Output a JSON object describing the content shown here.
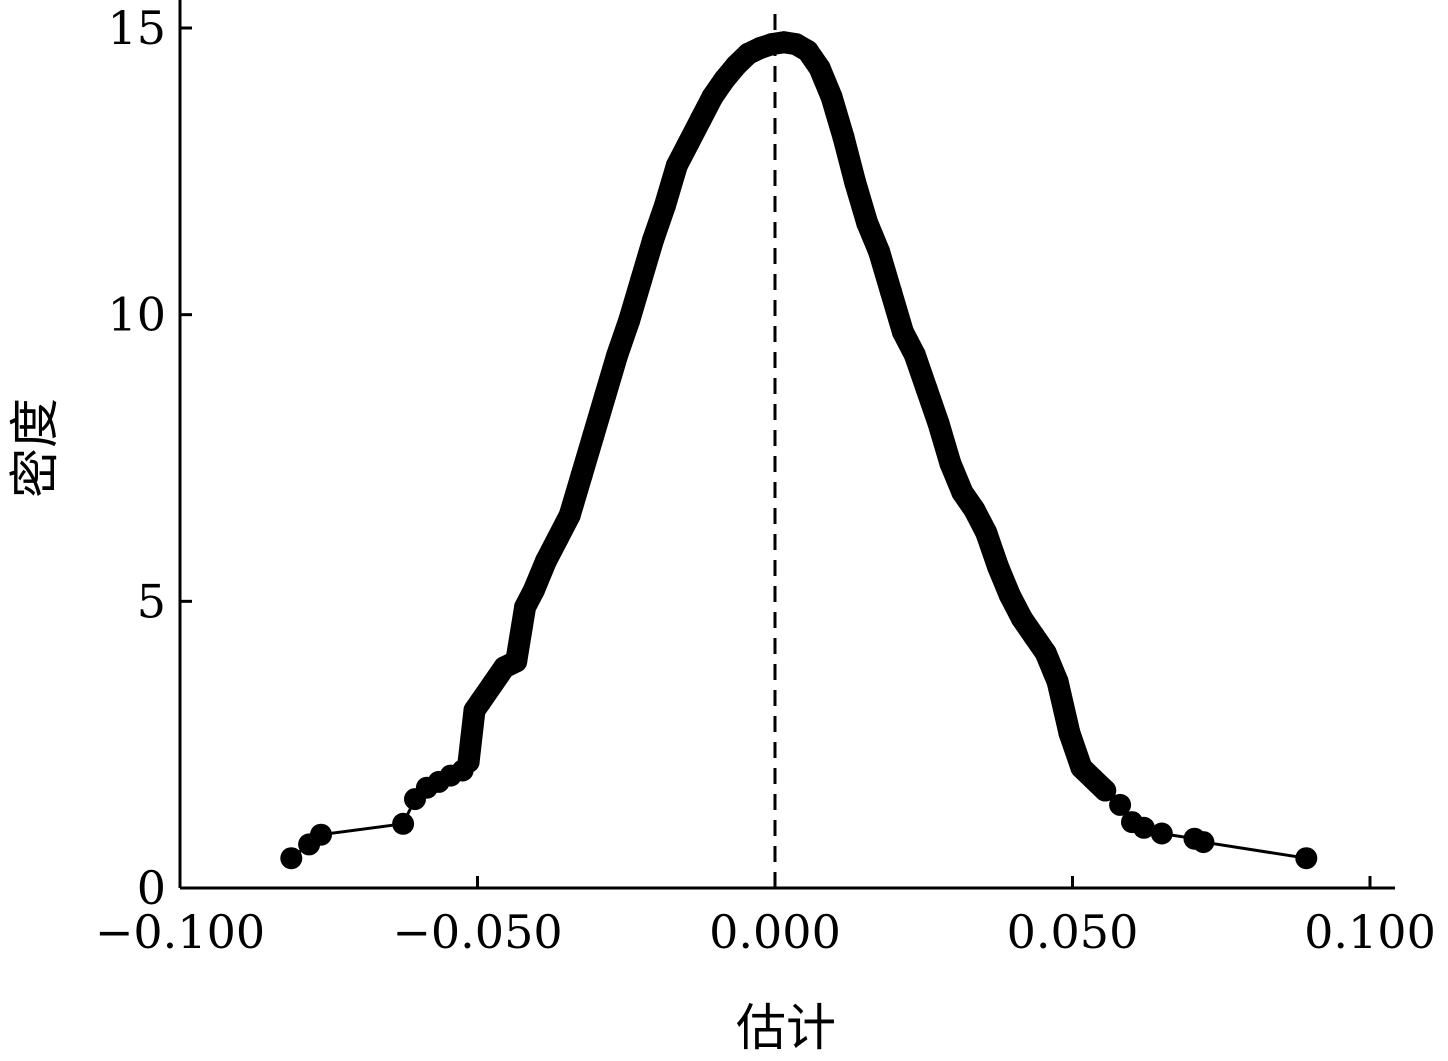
{
  "chart_data": {
    "type": "scatter",
    "title": "",
    "xlabel": "估计",
    "ylabel": "密度",
    "xlim": [
      -0.1,
      0.1
    ],
    "ylim": [
      0,
      15
    ],
    "x_ticks": [
      -0.1,
      -0.05,
      0.0,
      0.05,
      0.1
    ],
    "x_tick_labels": [
      "−0.100",
      "−0.050",
      "0.000",
      "0.050",
      "0.100"
    ],
    "y_ticks": [
      0,
      5,
      10,
      15
    ],
    "y_tick_labels": [
      "0",
      "5",
      "10",
      "15"
    ],
    "grid": false,
    "legend": "none",
    "reference_line": {
      "x": 0.0,
      "style": "dashed"
    },
    "colors": {
      "points": "#000000",
      "axis": "#000000",
      "curve": "#000000"
    },
    "series": [
      {
        "x": [
          -0.0813,
          -0.0783,
          -0.0763,
          -0.0625,
          -0.0605,
          -0.0585,
          -0.0565,
          -0.0545,
          -0.0525,
          -0.0515,
          -0.0505,
          -0.0495,
          -0.0475,
          -0.0455,
          -0.0435,
          -0.042,
          -0.0405,
          -0.0385,
          -0.0365,
          -0.0345,
          -0.0325,
          -0.0305,
          -0.0285,
          -0.0265,
          -0.0245,
          -0.0225,
          -0.0205,
          -0.0185,
          -0.0165,
          -0.0145,
          -0.0125,
          -0.0105,
          -0.0085,
          -0.0065,
          -0.0045,
          -0.0025,
          -0.0005,
          0.0015,
          0.0035,
          0.0055,
          0.0075,
          0.0095,
          0.0115,
          0.0135,
          0.0155,
          0.0175,
          0.0195,
          0.0215,
          0.0235,
          0.0255,
          0.0275,
          0.0295,
          0.0315,
          0.0335,
          0.0355,
          0.0375,
          0.0395,
          0.0415,
          0.0435,
          0.0455,
          0.0475,
          0.0495,
          0.0515,
          0.0535,
          0.0555,
          0.058,
          0.06,
          0.062,
          0.065,
          0.0705,
          0.072,
          0.0893
        ],
        "y": [
          0.52,
          0.76,
          0.93,
          1.12,
          1.55,
          1.75,
          1.85,
          1.96,
          2.05,
          2.2,
          3.1,
          3.25,
          3.55,
          3.85,
          3.95,
          4.9,
          5.2,
          5.7,
          6.1,
          6.5,
          7.2,
          7.9,
          8.6,
          9.3,
          9.9,
          10.6,
          11.3,
          11.9,
          12.6,
          13.0,
          13.4,
          13.8,
          14.1,
          14.35,
          14.55,
          14.65,
          14.72,
          14.75,
          14.72,
          14.6,
          14.3,
          13.8,
          13.1,
          12.3,
          11.6,
          11.1,
          10.4,
          9.7,
          9.3,
          8.7,
          8.1,
          7.4,
          6.9,
          6.6,
          6.2,
          5.6,
          5.1,
          4.7,
          4.4,
          4.1,
          3.6,
          2.7,
          2.1,
          1.9,
          1.7,
          1.45,
          1.15,
          1.05,
          0.95,
          0.86,
          0.8,
          0.52
        ]
      }
    ]
  }
}
